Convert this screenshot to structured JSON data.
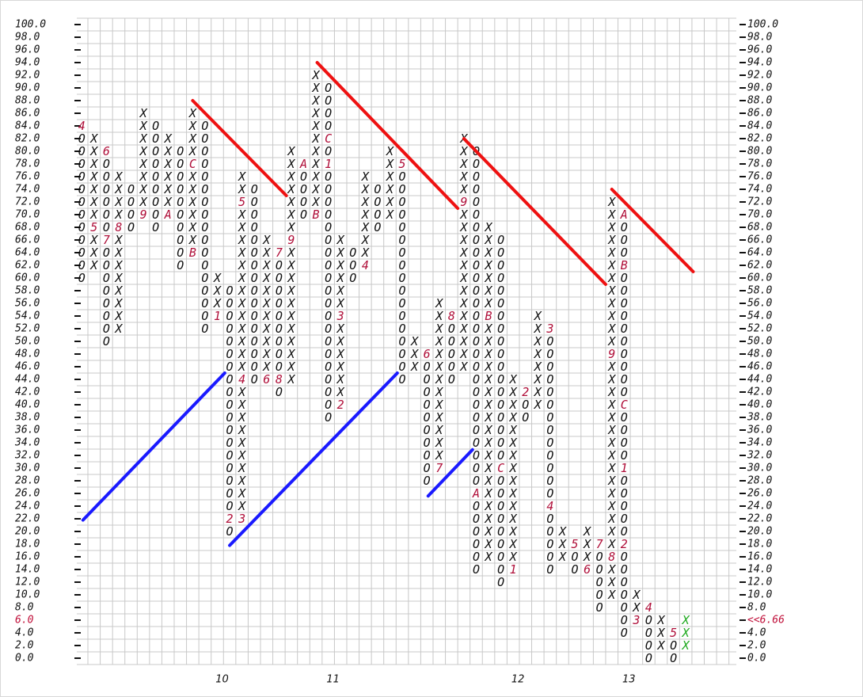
{
  "chart_data": {
    "type": "point-and-figure",
    "box_size": 2,
    "xlim": [
      -0.4,
      53.1
    ],
    "ylim": [
      -1,
      101
    ],
    "xticks": [
      {
        "value": 11,
        "label": "10"
      },
      {
        "value": 20,
        "label": "11"
      },
      {
        "value": 35,
        "label": "12"
      },
      {
        "value": 44,
        "label": "13"
      }
    ],
    "yticks": [
      {
        "value": 0,
        "label": "0.0"
      },
      {
        "value": 2,
        "label": "2.0"
      },
      {
        "value": 4,
        "label": "4.0"
      },
      {
        "value": 6,
        "label": "6.0"
      },
      {
        "value": 8,
        "label": "8.0"
      },
      {
        "value": 10,
        "label": "10.0"
      },
      {
        "value": 12,
        "label": "12.0"
      },
      {
        "value": 14,
        "label": "14.0"
      },
      {
        "value": 16,
        "label": "16.0"
      },
      {
        "value": 18,
        "label": "18.0"
      },
      {
        "value": 20,
        "label": "20.0"
      },
      {
        "value": 22,
        "label": "22.0"
      },
      {
        "value": 24,
        "label": "24.0"
      },
      {
        "value": 26,
        "label": "26.0"
      },
      {
        "value": 28,
        "label": "28.0"
      },
      {
        "value": 30,
        "label": "30.0"
      },
      {
        "value": 32,
        "label": "32.0"
      },
      {
        "value": 34,
        "label": "34.0"
      },
      {
        "value": 36,
        "label": "36.0"
      },
      {
        "value": 38,
        "label": "38.0"
      },
      {
        "value": 40,
        "label": "40.0"
      },
      {
        "value": 42,
        "label": "42.0"
      },
      {
        "value": 44,
        "label": "44.0"
      },
      {
        "value": 46,
        "label": "46.0"
      },
      {
        "value": 48,
        "label": "48.0"
      },
      {
        "value": 50,
        "label": "50.0"
      },
      {
        "value": 52,
        "label": "52.0"
      },
      {
        "value": 54,
        "label": "54.0"
      },
      {
        "value": 56,
        "label": "56.0"
      },
      {
        "value": 58,
        "label": "58.0"
      },
      {
        "value": 60,
        "label": "60.0"
      },
      {
        "value": 62,
        "label": "62.0"
      },
      {
        "value": 64,
        "label": "64.0"
      },
      {
        "value": 66,
        "label": "66.0"
      },
      {
        "value": 68,
        "label": "68.0"
      },
      {
        "value": 70,
        "label": "70.0"
      },
      {
        "value": 72,
        "label": "72.0"
      },
      {
        "value": 74,
        "label": "74.0"
      },
      {
        "value": 76,
        "label": "76.0"
      },
      {
        "value": 78,
        "label": "78.0"
      },
      {
        "value": 80,
        "label": "80.0"
      },
      {
        "value": 82,
        "label": "82.0"
      },
      {
        "value": 84,
        "label": "84.0"
      },
      {
        "value": 86,
        "label": "86.0"
      },
      {
        "value": 88,
        "label": "88.0"
      },
      {
        "value": 90,
        "label": "90.0"
      },
      {
        "value": 92,
        "label": "92.0"
      },
      {
        "value": 94,
        "label": "94.0"
      },
      {
        "value": 96,
        "label": "96.0"
      },
      {
        "value": 98,
        "label": "98.0"
      },
      {
        "value": 100,
        "label": "100.0"
      }
    ],
    "grid": true,
    "color": "#111111",
    "month_color": "#b0103a",
    "highlight_ytick": 6,
    "highlight_color": "#c0103a",
    "current_price": {
      "value": 6.66,
      "label": "<<6.66"
    },
    "columns": [
      {
        "symbol": "O",
        "low": 60,
        "high": 84,
        "months": [
          {
            "value": 84,
            "label": "4"
          }
        ]
      },
      {
        "symbol": "X",
        "low": 62,
        "high": 82,
        "months": [
          {
            "value": 68,
            "label": "5"
          }
        ]
      },
      {
        "symbol": "O",
        "low": 50,
        "high": 80,
        "months": [
          {
            "value": 80,
            "label": "6"
          },
          {
            "value": 66,
            "label": "7"
          }
        ]
      },
      {
        "symbol": "X",
        "low": 52,
        "high": 76,
        "months": [
          {
            "value": 68,
            "label": "8"
          }
        ]
      },
      {
        "symbol": "O",
        "low": 68,
        "high": 74,
        "months": []
      },
      {
        "symbol": "X",
        "low": 70,
        "high": 86,
        "months": [
          {
            "value": 70,
            "label": "9"
          }
        ]
      },
      {
        "symbol": "O",
        "low": 68,
        "high": 84,
        "months": []
      },
      {
        "symbol": "X",
        "low": 70,
        "high": 82,
        "months": [
          {
            "value": 70,
            "label": "A"
          }
        ]
      },
      {
        "symbol": "O",
        "low": 62,
        "high": 80,
        "months": []
      },
      {
        "symbol": "X",
        "low": 64,
        "high": 86,
        "months": [
          {
            "value": 64,
            "label": "B"
          },
          {
            "value": 78,
            "label": "C"
          }
        ]
      },
      {
        "symbol": "O",
        "low": 52,
        "high": 84,
        "months": []
      },
      {
        "symbol": "X",
        "low": 54,
        "high": 60,
        "months": [
          {
            "value": 54,
            "label": "1"
          }
        ]
      },
      {
        "symbol": "O",
        "low": 20,
        "high": 58,
        "months": [
          {
            "value": 22,
            "label": "2"
          }
        ]
      },
      {
        "symbol": "X",
        "low": 22,
        "high": 76,
        "months": [
          {
            "value": 22,
            "label": "3"
          },
          {
            "value": 44,
            "label": "4"
          },
          {
            "value": 72,
            "label": "5"
          }
        ]
      },
      {
        "symbol": "O",
        "low": 44,
        "high": 74,
        "months": []
      },
      {
        "symbol": "X",
        "low": 44,
        "high": 66,
        "months": [
          {
            "value": 44,
            "label": "6"
          }
        ]
      },
      {
        "symbol": "O",
        "low": 42,
        "high": 64,
        "months": [
          {
            "value": 64,
            "label": "7"
          },
          {
            "value": 44,
            "label": "8"
          }
        ]
      },
      {
        "symbol": "X",
        "low": 44,
        "high": 80,
        "months": [
          {
            "value": 66,
            "label": "9"
          }
        ]
      },
      {
        "symbol": "O",
        "low": 70,
        "high": 78,
        "months": [
          {
            "value": 78,
            "label": "A"
          }
        ]
      },
      {
        "symbol": "X",
        "low": 70,
        "high": 92,
        "months": [
          {
            "value": 70,
            "label": "B"
          }
        ]
      },
      {
        "symbol": "O",
        "low": 38,
        "high": 90,
        "months": [
          {
            "value": 82,
            "label": "C"
          },
          {
            "value": 78,
            "label": "1"
          }
        ]
      },
      {
        "symbol": "X",
        "low": 40,
        "high": 66,
        "months": [
          {
            "value": 40,
            "label": "2"
          },
          {
            "value": 54,
            "label": "3"
          }
        ]
      },
      {
        "symbol": "O",
        "low": 60,
        "high": 64,
        "months": []
      },
      {
        "symbol": "X",
        "low": 62,
        "high": 76,
        "months": [
          {
            "value": 62,
            "label": "4"
          }
        ]
      },
      {
        "symbol": "O",
        "low": 68,
        "high": 74,
        "months": []
      },
      {
        "symbol": "X",
        "low": 70,
        "high": 80,
        "months": []
      },
      {
        "symbol": "O",
        "low": 44,
        "high": 78,
        "months": [
          {
            "value": 78,
            "label": "5"
          }
        ]
      },
      {
        "symbol": "X",
        "low": 46,
        "high": 50,
        "months": []
      },
      {
        "symbol": "O",
        "low": 28,
        "high": 48,
        "months": [
          {
            "value": 48,
            "label": "6"
          }
        ]
      },
      {
        "symbol": "X",
        "low": 30,
        "high": 56,
        "months": [
          {
            "value": 30,
            "label": "7"
          }
        ]
      },
      {
        "symbol": "O",
        "low": 44,
        "high": 54,
        "months": [
          {
            "value": 54,
            "label": "8"
          }
        ]
      },
      {
        "symbol": "X",
        "low": 46,
        "high": 82,
        "months": [
          {
            "value": 72,
            "label": "9"
          }
        ]
      },
      {
        "symbol": "O",
        "low": 14,
        "high": 80,
        "months": [
          {
            "value": 26,
            "label": "A"
          }
        ]
      },
      {
        "symbol": "X",
        "low": 16,
        "high": 68,
        "months": [
          {
            "value": 54,
            "label": "B"
          }
        ]
      },
      {
        "symbol": "O",
        "low": 12,
        "high": 66,
        "months": [
          {
            "value": 30,
            "label": "C"
          }
        ]
      },
      {
        "symbol": "X",
        "low": 14,
        "high": 44,
        "months": [
          {
            "value": 14,
            "label": "1"
          }
        ]
      },
      {
        "symbol": "O",
        "low": 38,
        "high": 42,
        "months": [
          {
            "value": 42,
            "label": "2"
          }
        ]
      },
      {
        "symbol": "X",
        "low": 40,
        "high": 54,
        "months": []
      },
      {
        "symbol": "O",
        "low": 14,
        "high": 52,
        "months": [
          {
            "value": 52,
            "label": "3"
          },
          {
            "value": 24,
            "label": "4"
          }
        ]
      },
      {
        "symbol": "X",
        "low": 16,
        "high": 20,
        "months": []
      },
      {
        "symbol": "O",
        "low": 14,
        "high": 18,
        "months": [
          {
            "value": 18,
            "label": "5"
          }
        ]
      },
      {
        "symbol": "X",
        "low": 14,
        "high": 20,
        "months": [
          {
            "value": 14,
            "label": "6"
          }
        ]
      },
      {
        "symbol": "O",
        "low": 8,
        "high": 18,
        "months": [
          {
            "value": 18,
            "label": "7"
          }
        ]
      },
      {
        "symbol": "X",
        "low": 10,
        "high": 72,
        "months": [
          {
            "value": 16,
            "label": "8"
          },
          {
            "value": 48,
            "label": "9"
          }
        ]
      },
      {
        "symbol": "O",
        "low": 4,
        "high": 70,
        "months": [
          {
            "value": 70,
            "label": "A"
          },
          {
            "value": 62,
            "label": "B"
          },
          {
            "value": 40,
            "label": "C"
          },
          {
            "value": 30,
            "label": "1"
          },
          {
            "value": 18,
            "label": "2"
          }
        ]
      },
      {
        "symbol": "X",
        "low": 6,
        "high": 10,
        "months": [
          {
            "value": 6,
            "label": "3"
          }
        ]
      },
      {
        "symbol": "O",
        "low": 0,
        "high": 8,
        "months": [
          {
            "value": 8,
            "label": "4"
          }
        ]
      },
      {
        "symbol": "X",
        "low": 2,
        "high": 6,
        "months": []
      },
      {
        "symbol": "O",
        "low": 0,
        "high": 4,
        "months": [
          {
            "value": 4,
            "label": "5"
          }
        ]
      },
      {
        "symbol": "X",
        "low": 2,
        "high": 6,
        "months": [],
        "color": "#22aa22"
      }
    ],
    "trend_lines": [
      {
        "color": "#ee1111",
        "x": [
          9,
          16.6
        ],
        "y": [
          88,
          73
        ]
      },
      {
        "color": "#ee1111",
        "x": [
          19.1,
          30.5
        ],
        "y": [
          94,
          71
        ]
      },
      {
        "color": "#ee1111",
        "x": [
          31,
          42.5
        ],
        "y": [
          82,
          59
        ]
      },
      {
        "color": "#ee1111",
        "x": [
          43,
          49.6
        ],
        "y": [
          74,
          61
        ]
      },
      {
        "color": "#1a1aff",
        "x": [
          0.1,
          11.6
        ],
        "y": [
          21.8,
          45
        ]
      },
      {
        "color": "#1a1aff",
        "x": [
          12,
          25.6
        ],
        "y": [
          17.8,
          45
        ]
      },
      {
        "color": "#1a1aff",
        "x": [
          28.1,
          31.7
        ],
        "y": [
          25.6,
          32.9
        ]
      }
    ]
  }
}
